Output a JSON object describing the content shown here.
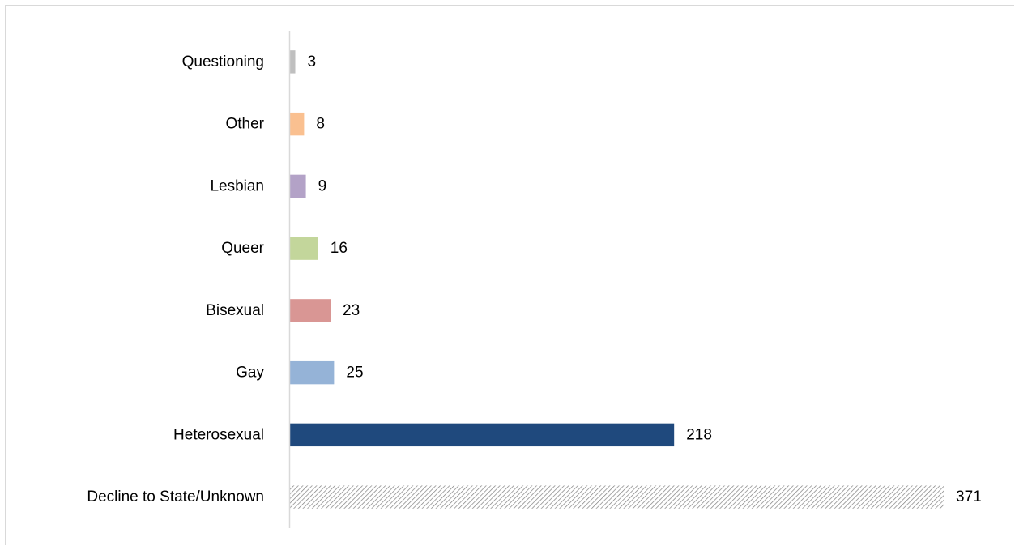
{
  "chart_data": {
    "type": "bar",
    "orientation": "horizontal",
    "categories": [
      "Questioning",
      "Other",
      "Lesbian",
      "Queer",
      "Bisexual",
      "Gay",
      "Heterosexual",
      "Decline to State/Unknown"
    ],
    "values": [
      3,
      8,
      9,
      16,
      23,
      25,
      218,
      371
    ],
    "colors": [
      "#bfbfbf",
      "#fac090",
      "#b3a2c7",
      "#c3d69b",
      "#d99694",
      "#95b3d7",
      "#1f497d",
      "hatch"
    ],
    "title": "",
    "xlabel": "",
    "ylabel": "",
    "xlim": [
      0,
      371
    ],
    "grid": false,
    "legend": "none",
    "data_labels": true
  }
}
